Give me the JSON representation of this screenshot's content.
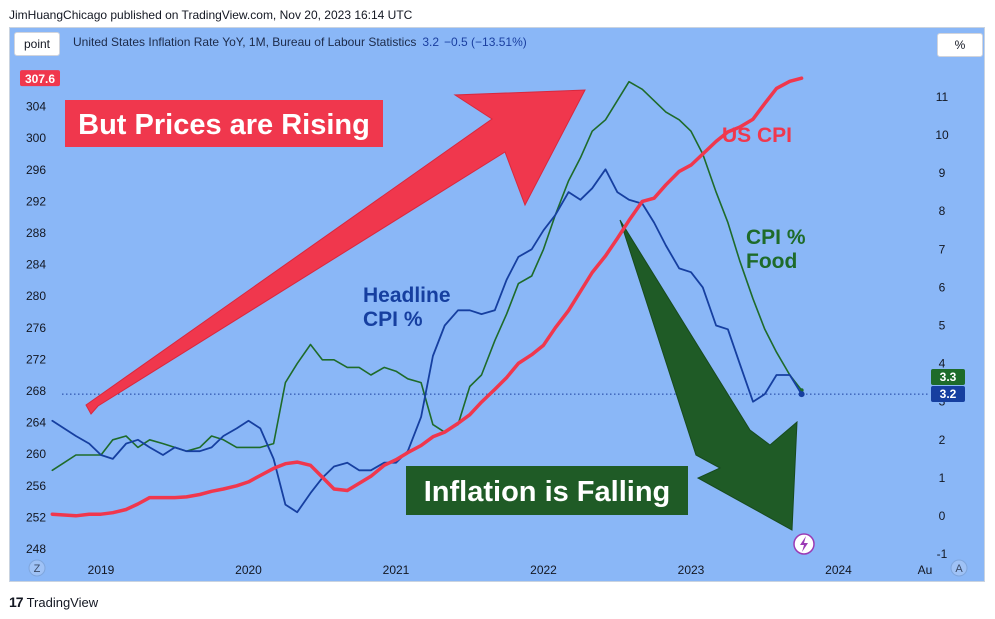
{
  "header": {
    "publisher": "JimHuangChicago published on TradingView.com, Nov 20, 2023 16:14 UTC"
  },
  "toolbar": {
    "point_label": "point",
    "percent_label": "%",
    "z_label": "Z",
    "a_label": "A"
  },
  "legend": {
    "symbol": "United States Inflation Rate YoY, 1M, Bureau of Labour Statistics",
    "value": "3.2",
    "change": "−0.5 (−13.51%)"
  },
  "footer": {
    "brand": "TradingView"
  },
  "colors": {
    "background": "#8ab7f7",
    "cpi": "#f0374d",
    "headline": "#163fa0",
    "food": "#1e6b2a",
    "red_arrow": "#f0374d",
    "green_arrow": "#1f5b26"
  },
  "chart_data": {
    "type": "line",
    "title": "",
    "left_axis": {
      "ticks": [
        248,
        252,
        256,
        260,
        264,
        268,
        272,
        276,
        280,
        284,
        288,
        292,
        296,
        300,
        304
      ]
    },
    "right_axis": {
      "ticks": [
        -1,
        0,
        1,
        2,
        3,
        4,
        5,
        6,
        7,
        8,
        9,
        10,
        11
      ]
    },
    "x_axis": {
      "ticks": [
        "2019",
        "2020",
        "2021",
        "2022",
        "2023",
        "2024",
        "Au"
      ]
    },
    "price_labels": {
      "cpi_last": "307.6",
      "food_last": "3.3",
      "headline_last": "3.2"
    },
    "annotations": {
      "rising": "But Prices are Rising",
      "falling": "Inflation is Falling",
      "us_cpi": "US CPI",
      "headline": [
        "Headline",
        "CPI %"
      ],
      "food": [
        "CPI %",
        "Food"
      ]
    },
    "series": [
      {
        "name": "US CPI",
        "axis": "left",
        "points": [
          [
            2018.67,
            252.4
          ],
          [
            2018.75,
            252.3
          ],
          [
            2018.83,
            252.2
          ],
          [
            2018.92,
            252.4
          ],
          [
            2019.0,
            252.4
          ],
          [
            2019.08,
            252.6
          ],
          [
            2019.17,
            253.0
          ],
          [
            2019.25,
            253.7
          ],
          [
            2019.33,
            254.5
          ],
          [
            2019.42,
            254.5
          ],
          [
            2019.5,
            254.5
          ],
          [
            2019.58,
            254.6
          ],
          [
            2019.67,
            254.9
          ],
          [
            2019.75,
            255.3
          ],
          [
            2019.83,
            255.6
          ],
          [
            2019.92,
            256.0
          ],
          [
            2020.0,
            256.5
          ],
          [
            2020.08,
            257.3
          ],
          [
            2020.17,
            258.2
          ],
          [
            2020.25,
            258.8
          ],
          [
            2020.33,
            259.0
          ],
          [
            2020.42,
            258.6
          ],
          [
            2020.5,
            257.1
          ],
          [
            2020.58,
            255.6
          ],
          [
            2020.67,
            255.4
          ],
          [
            2020.75,
            256.3
          ],
          [
            2020.83,
            257.2
          ],
          [
            2020.92,
            258.6
          ],
          [
            2021.0,
            259.3
          ],
          [
            2021.08,
            260.2
          ],
          [
            2021.17,
            261.1
          ],
          [
            2021.25,
            262.2
          ],
          [
            2021.33,
            262.8
          ],
          [
            2021.42,
            263.9
          ],
          [
            2021.5,
            265.0
          ],
          [
            2021.58,
            266.6
          ],
          [
            2021.67,
            268.2
          ],
          [
            2021.75,
            269.7
          ],
          [
            2021.83,
            271.5
          ],
          [
            2021.92,
            272.6
          ],
          [
            2022.0,
            273.8
          ],
          [
            2022.08,
            276.0
          ],
          [
            2022.17,
            278.2
          ],
          [
            2022.25,
            280.6
          ],
          [
            2022.33,
            283.0
          ],
          [
            2022.42,
            285.1
          ],
          [
            2022.5,
            287.3
          ],
          [
            2022.58,
            289.6
          ],
          [
            2022.67,
            292.0
          ],
          [
            2022.75,
            292.4
          ],
          [
            2022.83,
            294.1
          ],
          [
            2022.92,
            295.8
          ],
          [
            2023.0,
            296.6
          ],
          [
            2023.08,
            298.0
          ],
          [
            2023.17,
            299.6
          ],
          [
            2023.25,
            300.8
          ],
          [
            2023.33,
            301.4
          ],
          [
            2023.42,
            302.4
          ],
          [
            2023.5,
            304.4
          ],
          [
            2023.58,
            306.3
          ],
          [
            2023.67,
            307.2
          ],
          [
            2023.75,
            307.6
          ]
        ]
      },
      {
        "name": "Headline CPI %",
        "axis": "right",
        "points": [
          [
            2018.67,
            2.5
          ],
          [
            2018.75,
            2.3
          ],
          [
            2018.83,
            2.1
          ],
          [
            2018.92,
            1.9
          ],
          [
            2019.0,
            1.6
          ],
          [
            2019.08,
            1.5
          ],
          [
            2019.17,
            1.9
          ],
          [
            2019.25,
            2.0
          ],
          [
            2019.33,
            1.8
          ],
          [
            2019.42,
            1.6
          ],
          [
            2019.5,
            1.8
          ],
          [
            2019.58,
            1.7
          ],
          [
            2019.67,
            1.7
          ],
          [
            2019.75,
            1.8
          ],
          [
            2019.83,
            2.1
          ],
          [
            2019.92,
            2.3
          ],
          [
            2020.0,
            2.5
          ],
          [
            2020.08,
            2.3
          ],
          [
            2020.17,
            1.5
          ],
          [
            2020.25,
            0.3
          ],
          [
            2020.33,
            0.1
          ],
          [
            2020.42,
            0.6
          ],
          [
            2020.5,
            1.0
          ],
          [
            2020.58,
            1.3
          ],
          [
            2020.67,
            1.4
          ],
          [
            2020.75,
            1.2
          ],
          [
            2020.83,
            1.2
          ],
          [
            2020.92,
            1.4
          ],
          [
            2021.0,
            1.4
          ],
          [
            2021.08,
            1.7
          ],
          [
            2021.17,
            2.6
          ],
          [
            2021.25,
            4.2
          ],
          [
            2021.33,
            5.0
          ],
          [
            2021.42,
            5.4
          ],
          [
            2021.5,
            5.4
          ],
          [
            2021.58,
            5.3
          ],
          [
            2021.67,
            5.4
          ],
          [
            2021.75,
            6.2
          ],
          [
            2021.83,
            6.8
          ],
          [
            2021.92,
            7.0
          ],
          [
            2022.0,
            7.5
          ],
          [
            2022.08,
            7.9
          ],
          [
            2022.17,
            8.5
          ],
          [
            2022.25,
            8.3
          ],
          [
            2022.33,
            8.6
          ],
          [
            2022.42,
            9.1
          ],
          [
            2022.5,
            8.5
          ],
          [
            2022.58,
            8.3
          ],
          [
            2022.67,
            8.2
          ],
          [
            2022.75,
            7.7
          ],
          [
            2022.83,
            7.1
          ],
          [
            2022.92,
            6.5
          ],
          [
            2023.0,
            6.4
          ],
          [
            2023.08,
            6.0
          ],
          [
            2023.17,
            5.0
          ],
          [
            2023.25,
            4.9
          ],
          [
            2023.33,
            4.0
          ],
          [
            2023.42,
            3.0
          ],
          [
            2023.5,
            3.2
          ],
          [
            2023.58,
            3.7
          ],
          [
            2023.67,
            3.7
          ],
          [
            2023.75,
            3.2
          ]
        ]
      },
      {
        "name": "CPI % Food",
        "axis": "right",
        "points": [
          [
            2018.67,
            1.2
          ],
          [
            2018.75,
            1.4
          ],
          [
            2018.83,
            1.6
          ],
          [
            2018.92,
            1.6
          ],
          [
            2019.0,
            1.6
          ],
          [
            2019.08,
            2.0
          ],
          [
            2019.17,
            2.1
          ],
          [
            2019.25,
            1.8
          ],
          [
            2019.33,
            2.0
          ],
          [
            2019.42,
            1.9
          ],
          [
            2019.5,
            1.8
          ],
          [
            2019.58,
            1.7
          ],
          [
            2019.67,
            1.8
          ],
          [
            2019.75,
            2.1
          ],
          [
            2019.83,
            2.0
          ],
          [
            2019.92,
            1.8
          ],
          [
            2020.0,
            1.8
          ],
          [
            2020.08,
            1.8
          ],
          [
            2020.17,
            1.9
          ],
          [
            2020.25,
            3.5
          ],
          [
            2020.33,
            4.0
          ],
          [
            2020.42,
            4.5
          ],
          [
            2020.5,
            4.1
          ],
          [
            2020.58,
            4.1
          ],
          [
            2020.67,
            3.9
          ],
          [
            2020.75,
            3.9
          ],
          [
            2020.83,
            3.7
          ],
          [
            2020.92,
            3.9
          ],
          [
            2021.0,
            3.8
          ],
          [
            2021.08,
            3.6
          ],
          [
            2021.17,
            3.5
          ],
          [
            2021.25,
            2.4
          ],
          [
            2021.33,
            2.2
          ],
          [
            2021.42,
            2.4
          ],
          [
            2021.5,
            3.4
          ],
          [
            2021.58,
            3.7
          ],
          [
            2021.67,
            4.6
          ],
          [
            2021.75,
            5.3
          ],
          [
            2021.83,
            6.1
          ],
          [
            2021.92,
            6.3
          ],
          [
            2022.0,
            7.0
          ],
          [
            2022.08,
            7.9
          ],
          [
            2022.17,
            8.8
          ],
          [
            2022.25,
            9.4
          ],
          [
            2022.33,
            10.1
          ],
          [
            2022.42,
            10.4
          ],
          [
            2022.5,
            10.9
          ],
          [
            2022.58,
            11.4
          ],
          [
            2022.67,
            11.2
          ],
          [
            2022.75,
            10.9
          ],
          [
            2022.83,
            10.6
          ],
          [
            2022.92,
            10.4
          ],
          [
            2023.0,
            10.1
          ],
          [
            2023.08,
            9.5
          ],
          [
            2023.17,
            8.5
          ],
          [
            2023.25,
            7.7
          ],
          [
            2023.33,
            6.7
          ],
          [
            2023.42,
            5.7
          ],
          [
            2023.5,
            4.9
          ],
          [
            2023.58,
            4.3
          ],
          [
            2023.67,
            3.7
          ],
          [
            2023.75,
            3.3
          ]
        ]
      }
    ]
  }
}
